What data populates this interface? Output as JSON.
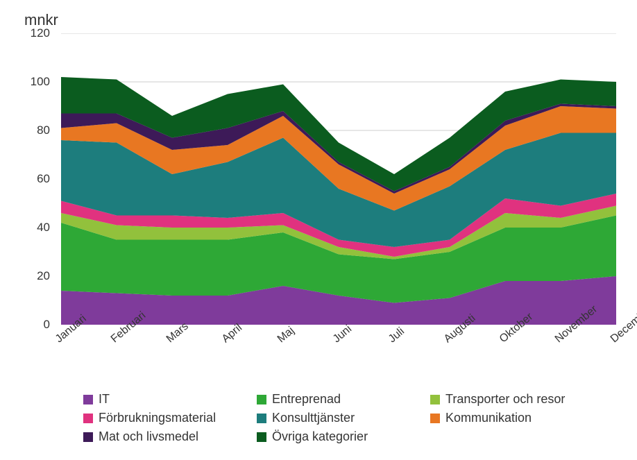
{
  "chart": {
    "type": "area-stacked",
    "y_axis_label": "mnkr",
    "y_ticks": [
      0,
      20,
      40,
      60,
      80,
      100,
      120
    ],
    "ylim": [
      0,
      120
    ],
    "x_categories": [
      "Januari",
      "Februari",
      "Mars",
      "April",
      "Maj",
      "Juni",
      "Juli",
      "Augusti",
      "Oktober",
      "November",
      "December"
    ],
    "background_color": "#ffffff",
    "grid_color": "#cccccc",
    "axis_text_color": "#343434",
    "title_fontsize": 22,
    "axis_fontsize": 17,
    "legend_fontsize": 18,
    "x_label_rotation": -40,
    "series": [
      {
        "name": "IT",
        "color": "#7f3b9b",
        "values": [
          14,
          13,
          12,
          12,
          16,
          12,
          9,
          11,
          18,
          18,
          20
        ]
      },
      {
        "name": "Entreprenad",
        "color": "#2ea836",
        "values": [
          28,
          22,
          23,
          23,
          22,
          17,
          18,
          19,
          22,
          22,
          25
        ]
      },
      {
        "name": "Transporter och resor",
        "color": "#92c13c",
        "values": [
          4,
          6,
          5,
          5,
          3,
          3,
          1,
          2,
          6,
          4,
          4
        ]
      },
      {
        "name": "Förbrukningsmaterial",
        "color": "#e0327f",
        "values": [
          5,
          4,
          5,
          4,
          5,
          3,
          4,
          3,
          6,
          5,
          5
        ]
      },
      {
        "name": "Konsulttjänster",
        "color": "#1d7d7d",
        "values": [
          25,
          30,
          17,
          23,
          31,
          21,
          15,
          22,
          20,
          30,
          25
        ]
      },
      {
        "name": "Kommunikation",
        "color": "#e87722",
        "values": [
          5,
          8,
          10,
          7,
          9,
          10,
          7,
          7,
          10,
          11,
          10
        ]
      },
      {
        "name": "Mat och livsmedel",
        "color": "#3d1a58",
        "values": [
          6,
          4,
          5,
          7,
          2,
          1,
          1,
          1,
          2,
          1,
          1
        ]
      },
      {
        "name": "Övriga kategorier",
        "color": "#0b5c1f",
        "values": [
          15,
          14,
          9,
          14,
          11,
          8,
          7,
          12,
          12,
          10,
          10
        ]
      }
    ]
  }
}
